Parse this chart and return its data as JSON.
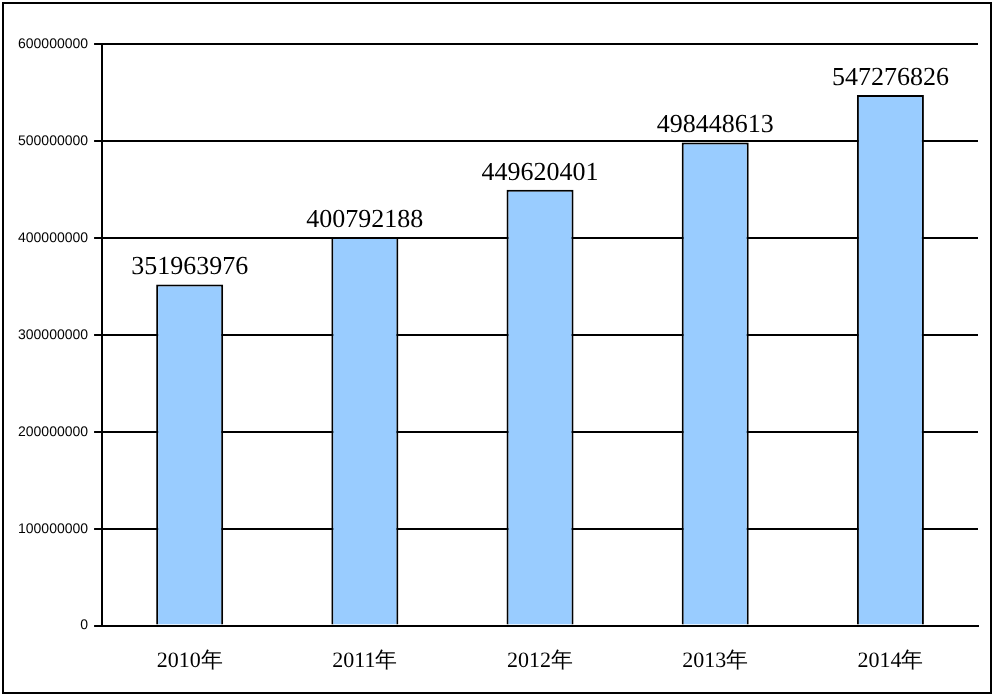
{
  "chart_data": {
    "type": "bar",
    "categories": [
      "2010年",
      "2011年",
      "2012年",
      "2013年",
      "2014年"
    ],
    "values": [
      351963976,
      400792188,
      449620401,
      498448613,
      547276826
    ],
    "color": "#99ccff",
    "ylim": [
      0,
      600000000
    ],
    "yticks": [
      0,
      100000000,
      200000000,
      300000000,
      400000000,
      500000000,
      600000000
    ],
    "grid": "y",
    "data_labels": true,
    "legend": false
  }
}
